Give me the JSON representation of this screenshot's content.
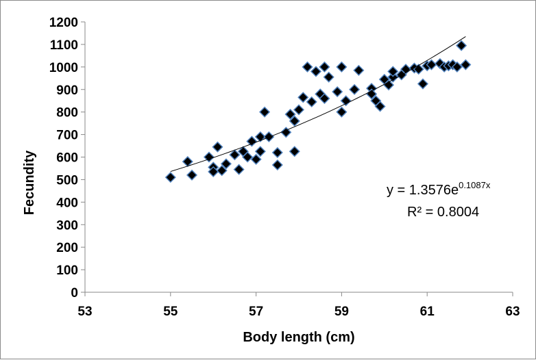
{
  "chart_data": {
    "type": "scatter",
    "xlabel": "Body length (cm)",
    "ylabel": "Fecundity",
    "xlim": [
      53,
      63
    ],
    "ylim": [
      0,
      1200
    ],
    "x_ticks": [
      53,
      55,
      57,
      59,
      61,
      63
    ],
    "y_ticks": [
      0,
      100,
      200,
      300,
      400,
      500,
      600,
      700,
      800,
      900,
      1000,
      1100,
      1200
    ],
    "grid": false,
    "legend": "none",
    "marker": {
      "shape": "diamond",
      "fill": "#000000",
      "edge": "#4f81bd"
    },
    "trendline": {
      "type": "exponential",
      "a": 1.3576,
      "b": 0.1087,
      "x_range": [
        55,
        61.9
      ],
      "equation_prefix": "y = 1.3576e",
      "equation_exponent": "0.1087x",
      "r_squared_text": "R² = 0.8004",
      "color": "#000000"
    },
    "points": [
      {
        "x": 55.0,
        "y": 510
      },
      {
        "x": 55.4,
        "y": 580
      },
      {
        "x": 55.5,
        "y": 520
      },
      {
        "x": 55.9,
        "y": 600
      },
      {
        "x": 56.0,
        "y": 555
      },
      {
        "x": 56.0,
        "y": 535
      },
      {
        "x": 56.1,
        "y": 645
      },
      {
        "x": 56.2,
        "y": 540
      },
      {
        "x": 56.3,
        "y": 570
      },
      {
        "x": 56.5,
        "y": 610
      },
      {
        "x": 56.6,
        "y": 545
      },
      {
        "x": 56.7,
        "y": 625
      },
      {
        "x": 56.8,
        "y": 600
      },
      {
        "x": 56.9,
        "y": 670
      },
      {
        "x": 57.0,
        "y": 590
      },
      {
        "x": 57.1,
        "y": 690
      },
      {
        "x": 57.1,
        "y": 625
      },
      {
        "x": 57.2,
        "y": 800
      },
      {
        "x": 57.3,
        "y": 690
      },
      {
        "x": 57.5,
        "y": 565
      },
      {
        "x": 57.5,
        "y": 620
      },
      {
        "x": 57.7,
        "y": 710
      },
      {
        "x": 57.8,
        "y": 790
      },
      {
        "x": 57.9,
        "y": 760
      },
      {
        "x": 57.9,
        "y": 625
      },
      {
        "x": 58.0,
        "y": 810
      },
      {
        "x": 58.1,
        "y": 865
      },
      {
        "x": 58.2,
        "y": 1000
      },
      {
        "x": 58.3,
        "y": 845
      },
      {
        "x": 58.4,
        "y": 980
      },
      {
        "x": 58.5,
        "y": 880
      },
      {
        "x": 58.6,
        "y": 860
      },
      {
        "x": 58.6,
        "y": 1000
      },
      {
        "x": 58.7,
        "y": 955
      },
      {
        "x": 58.9,
        "y": 890
      },
      {
        "x": 59.0,
        "y": 800
      },
      {
        "x": 59.0,
        "y": 1000
      },
      {
        "x": 59.1,
        "y": 850
      },
      {
        "x": 59.3,
        "y": 900
      },
      {
        "x": 59.4,
        "y": 985
      },
      {
        "x": 59.7,
        "y": 905
      },
      {
        "x": 59.7,
        "y": 880
      },
      {
        "x": 59.8,
        "y": 850
      },
      {
        "x": 59.9,
        "y": 825
      },
      {
        "x": 60.0,
        "y": 945
      },
      {
        "x": 60.1,
        "y": 920
      },
      {
        "x": 60.2,
        "y": 955
      },
      {
        "x": 60.2,
        "y": 980
      },
      {
        "x": 60.4,
        "y": 965
      },
      {
        "x": 60.5,
        "y": 990
      },
      {
        "x": 60.7,
        "y": 995
      },
      {
        "x": 60.8,
        "y": 990
      },
      {
        "x": 60.9,
        "y": 925
      },
      {
        "x": 61.0,
        "y": 1005
      },
      {
        "x": 61.1,
        "y": 1010
      },
      {
        "x": 61.3,
        "y": 1015
      },
      {
        "x": 61.4,
        "y": 1000
      },
      {
        "x": 61.5,
        "y": 1005
      },
      {
        "x": 61.6,
        "y": 1010
      },
      {
        "x": 61.7,
        "y": 1000
      },
      {
        "x": 61.8,
        "y": 1095
      },
      {
        "x": 61.9,
        "y": 1010
      }
    ]
  }
}
